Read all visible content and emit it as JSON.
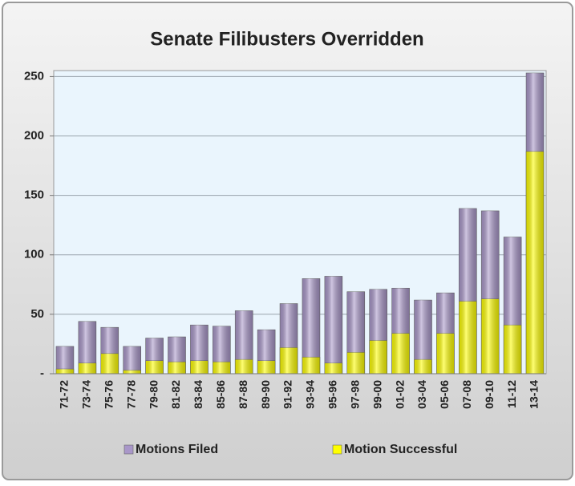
{
  "chart_data": {
    "type": "bar",
    "title": "Senate Filibusters Overridden",
    "categories": [
      "71-72",
      "73-74",
      "75-76",
      "77-78",
      "79-80",
      "81-82",
      "83-84",
      "85-86",
      "87-88",
      "89-90",
      "91-92",
      "93-94",
      "95-96",
      "97-98",
      "99-00",
      "01-02",
      "03-04",
      "05-06",
      "07-08",
      "09-10",
      "11-12",
      "13-14"
    ],
    "series": [
      {
        "name": "Motions Filed",
        "color": "#a997c9",
        "values": [
          23,
          44,
          39,
          23,
          30,
          31,
          41,
          40,
          53,
          37,
          59,
          80,
          82,
          69,
          71,
          72,
          62,
          68,
          139,
          137,
          115,
          253
        ]
      },
      {
        "name": "Motion Successful",
        "color": "#ffff00",
        "values": [
          4,
          9,
          17,
          3,
          11,
          10,
          11,
          10,
          12,
          11,
          22,
          14,
          9,
          18,
          28,
          34,
          12,
          34,
          61,
          63,
          41,
          187
        ]
      }
    ],
    "ylim": [
      0,
      255
    ],
    "yticks": [
      {
        "value": 0,
        "label": "-"
      },
      50,
      100,
      150,
      200,
      250
    ],
    "grid": true
  }
}
